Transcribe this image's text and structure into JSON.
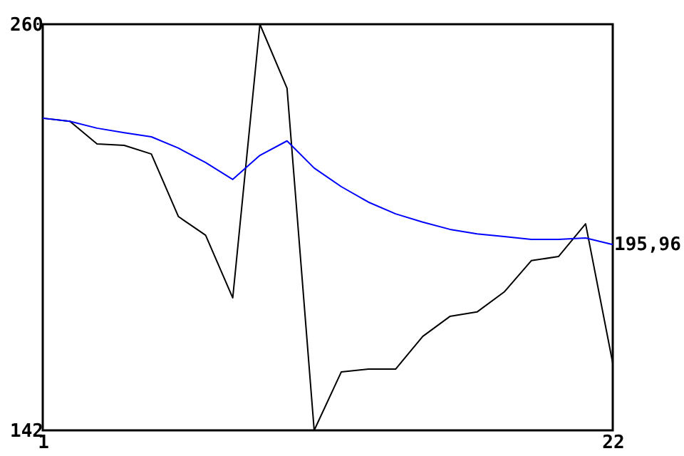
{
  "chart_data": {
    "type": "line",
    "x": [
      1,
      2,
      3,
      4,
      5,
      6,
      7,
      8,
      9,
      10,
      11,
      12,
      13,
      14,
      15,
      16,
      17,
      18,
      19,
      20,
      21,
      22
    ],
    "series": [
      {
        "color": "#000000",
        "values": [
          232.7,
          231.8,
          225.2,
          224.8,
          222.3,
          204.1,
          198.7,
          180.5,
          260,
          241.4,
          142,
          159.0,
          159.8,
          159.8,
          169.3,
          175.1,
          176.4,
          182.2,
          191.3,
          192.5,
          202.0,
          161.5
        ]
      },
      {
        "color": "#0000ff",
        "values": [
          232.7,
          231.8,
          229.8,
          228.5,
          227.3,
          224.0,
          219.8,
          214.9,
          221.9,
          226.1,
          218.2,
          212.8,
          208.3,
          204.9,
          202.5,
          200.4,
          199.1,
          198.3,
          197.5,
          197.5,
          197.9,
          195.96
        ]
      }
    ],
    "xlim": [
      1,
      22
    ],
    "xticks": [
      1,
      22
    ],
    "ylim": [
      142,
      260
    ],
    "yticks": [
      142,
      260
    ],
    "grid": false,
    "marker": "none",
    "line_style": "solid",
    "annotations": [
      {
        "text": "195,96",
        "x": 22,
        "y": 195.96
      }
    ]
  }
}
